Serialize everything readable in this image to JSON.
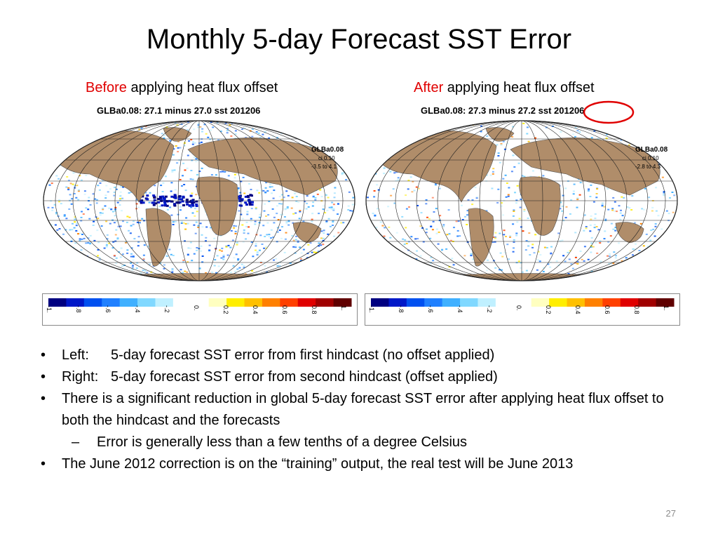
{
  "slide": {
    "title": "Monthly 5-day Forecast SST Error",
    "page_number": "27"
  },
  "panels": [
    {
      "highlight": "Before",
      "heading_rest": " applying heat flux offset",
      "caption": "GLBa0.08: 27.1 minus 27.0 sst 201206",
      "model": "GLBa0.08",
      "ci": "ci 0.10",
      "range": "-3.5 to 4.1"
    },
    {
      "highlight": "After",
      "heading_rest": " applying heat flux offset",
      "caption": "GLBa0.08: 27.3 minus 27.2 sst 201206",
      "model": "GLBa0.08",
      "ci": "ci 0.10",
      "range": "-2.8 to 4.3"
    }
  ],
  "colorbar": {
    "colors": [
      "#000080",
      "#0018c8",
      "#0050f0",
      "#2080ff",
      "#40b0ff",
      "#80d8ff",
      "#c0f0ff",
      "#ffffff",
      "#ffffff",
      "#ffffc0",
      "#ffee00",
      "#ffc000",
      "#ff8000",
      "#ff4000",
      "#e00000",
      "#a00000",
      "#600000"
    ],
    "ticks": [
      "-1.",
      "-.8",
      "-.6",
      "-.4",
      "-.2",
      "0.",
      "0.2",
      "0.4",
      "0.6",
      "0.8",
      "1."
    ]
  },
  "bullets": [
    {
      "prefix": "Left:",
      "text": "5-day forecast SST error from first hindcast (no offset applied)"
    },
    {
      "prefix": "Right:",
      "text": "5-day forecast SST error from second hindcast (offset applied)"
    },
    {
      "prefix": "",
      "text": "There is a significant reduction in global 5-day forecast SST error after applying heat flux offset to both the hindcast and the forecasts"
    },
    {
      "prefix": "",
      "text": "Error is generally less than a few tenths of a degree Celsius",
      "sub": true
    },
    {
      "prefix": "",
      "text": "The June 2012 correction is on the “training” output, the real test will be June 2013"
    }
  ],
  "colors": {
    "highlight": "#e00000",
    "land": "#b08d6a",
    "ocean": "#ffffff",
    "circle": "#e00000"
  }
}
